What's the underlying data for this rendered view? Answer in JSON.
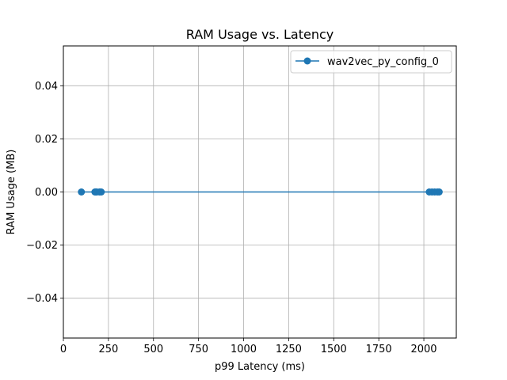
{
  "chart_data": {
    "type": "line",
    "title": "RAM Usage vs. Latency",
    "xlabel": "p99 Latency (ms)",
    "ylabel": "RAM Usage (MB)",
    "xlim": [
      0,
      2180
    ],
    "ylim": [
      -0.055,
      0.055
    ],
    "xticks": [
      0,
      250,
      500,
      750,
      1000,
      1250,
      1500,
      1750,
      2000
    ],
    "xtick_labels": [
      "0",
      "250",
      "500",
      "750",
      "1000",
      "1250",
      "1500",
      "1750",
      "2000"
    ],
    "yticks": [
      -0.04,
      -0.02,
      0.0,
      0.02,
      0.04
    ],
    "ytick_labels": [
      "−0.04",
      "−0.02",
      "0.00",
      "0.02",
      "0.04"
    ],
    "grid": true,
    "legend": "top-right",
    "series": [
      {
        "name": "wav2vec_py_config_0",
        "color": "#1f77b4",
        "marker": "circle",
        "x": [
          100,
          175,
          180,
          185,
          200,
          210,
          2030,
          2045,
          2060,
          2075,
          2085
        ],
        "y": [
          0,
          0,
          0,
          0,
          0,
          0,
          0,
          0,
          0,
          0,
          0
        ]
      }
    ]
  }
}
